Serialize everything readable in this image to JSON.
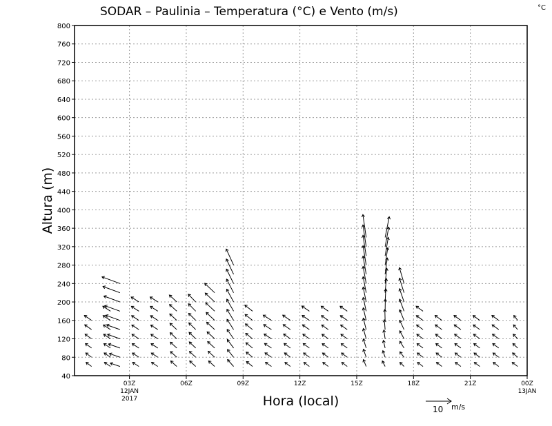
{
  "chart_data": {
    "type": "vector-field",
    "title": "SODAR – Paulinia – Temperatura (°C) e Vento (m/s)",
    "unit_corner": "°C",
    "xlabel": "Hora (local)",
    "ylabel": "Altura (m)",
    "x_ticks": [
      {
        "hour": 3,
        "label": "03Z",
        "sub": [
          "12JAN",
          "2017"
        ]
      },
      {
        "hour": 6,
        "label": "06Z",
        "sub": []
      },
      {
        "hour": 9,
        "label": "09Z",
        "sub": []
      },
      {
        "hour": 12,
        "label": "12Z",
        "sub": []
      },
      {
        "hour": 15,
        "label": "15Z",
        "sub": []
      },
      {
        "hour": 18,
        "label": "18Z",
        "sub": []
      },
      {
        "hour": 21,
        "label": "21Z",
        "sub": []
      },
      {
        "hour": 24,
        "label": "00Z",
        "sub": [
          "13JAN"
        ]
      }
    ],
    "xlim": [
      0.1,
      24
    ],
    "ylim": [
      40,
      800
    ],
    "y_ticks": [
      40,
      80,
      120,
      160,
      200,
      240,
      280,
      320,
      360,
      400,
      440,
      480,
      520,
      560,
      600,
      640,
      680,
      720,
      760,
      800
    ],
    "grid": true,
    "wind_reference": {
      "speed": 10,
      "unit": "m/s"
    },
    "wind_columns": [
      {
        "hour": 0.1,
        "top": 100,
        "u": -0.8,
        "v": 2.0,
        "du": 0.0,
        "dv": 0.0
      },
      {
        "hour": 1.0,
        "top": 160,
        "u": -2.0,
        "v": 1.5,
        "du": -0.6,
        "dv": 0.3
      },
      {
        "hour": 2.0,
        "top": 180,
        "u": -2.2,
        "v": 1.5,
        "du": -0.6,
        "dv": 0.3
      },
      {
        "hour": 2.5,
        "top": 240,
        "u": -3.5,
        "v": 1.2,
        "du": -3.0,
        "dv": 1.2
      },
      {
        "hour": 3.5,
        "top": 200,
        "u": -2.3,
        "v": 1.5,
        "du": -0.5,
        "dv": 0.3
      },
      {
        "hour": 4.5,
        "top": 200,
        "u": -2.3,
        "v": 1.5,
        "du": -0.5,
        "dv": 0.3
      },
      {
        "hour": 5.5,
        "top": 200,
        "u": -2.2,
        "v": 2.0,
        "du": -0.5,
        "dv": 0.5
      },
      {
        "hour": 6.5,
        "top": 200,
        "u": -2.2,
        "v": 2.0,
        "du": -0.5,
        "dv": 0.8
      },
      {
        "hour": 7.5,
        "top": 230,
        "u": -2.2,
        "v": 2.0,
        "du": -1.5,
        "dv": 1.5
      },
      {
        "hour": 8.5,
        "top": 290,
        "u": -2.2,
        "v": 2.5,
        "du": -0.5,
        "dv": 3.5
      },
      {
        "hour": 9.5,
        "top": 180,
        "u": -2.2,
        "v": 1.8,
        "du": -0.6,
        "dv": 0.4
      },
      {
        "hour": 10.5,
        "top": 160,
        "u": -2.2,
        "v": 1.5,
        "du": -0.8,
        "dv": 0.4
      },
      {
        "hour": 11.5,
        "top": 160,
        "u": -2.0,
        "v": 1.5,
        "du": -0.8,
        "dv": 0.4
      },
      {
        "hour": 12.5,
        "top": 190,
        "u": -2.0,
        "v": 1.5,
        "du": -0.8,
        "dv": 0.4
      },
      {
        "hour": 13.5,
        "top": 180,
        "u": -2.0,
        "v": 1.5,
        "du": -0.6,
        "dv": 0.3
      },
      {
        "hour": 14.5,
        "top": 180,
        "u": -2.0,
        "v": 1.5,
        "du": -0.6,
        "dv": 0.3
      },
      {
        "hour": 15.5,
        "top": 350,
        "u": -1.0,
        "v": 2.5,
        "du": -0.2,
        "dv": 6.0
      },
      {
        "hour": 16.5,
        "top": 340,
        "u": -1.0,
        "v": 2.0,
        "du": 2.5,
        "dv": 5.5
      },
      {
        "hour": 17.5,
        "top": 250,
        "u": -1.5,
        "v": 1.5,
        "du": -0.2,
        "dv": 4.5
      },
      {
        "hour": 18.5,
        "top": 180,
        "u": -2.0,
        "v": 1.5,
        "du": -0.5,
        "dv": 0.3
      },
      {
        "hour": 19.5,
        "top": 160,
        "u": -2.0,
        "v": 1.5,
        "du": -0.5,
        "dv": 0.3
      },
      {
        "hour": 20.5,
        "top": 160,
        "u": -2.0,
        "v": 1.5,
        "du": -0.5,
        "dv": 0.3
      },
      {
        "hour": 21.5,
        "top": 170,
        "u": -2.0,
        "v": 1.5,
        "du": -0.5,
        "dv": 0.3
      },
      {
        "hour": 22.5,
        "top": 160,
        "u": -2.0,
        "v": 1.5,
        "du": -0.5,
        "dv": 0.3
      },
      {
        "hour": 23.5,
        "top": 160,
        "u": -2.0,
        "v": 1.5,
        "du": 0.6,
        "dv": 0.3
      }
    ]
  }
}
